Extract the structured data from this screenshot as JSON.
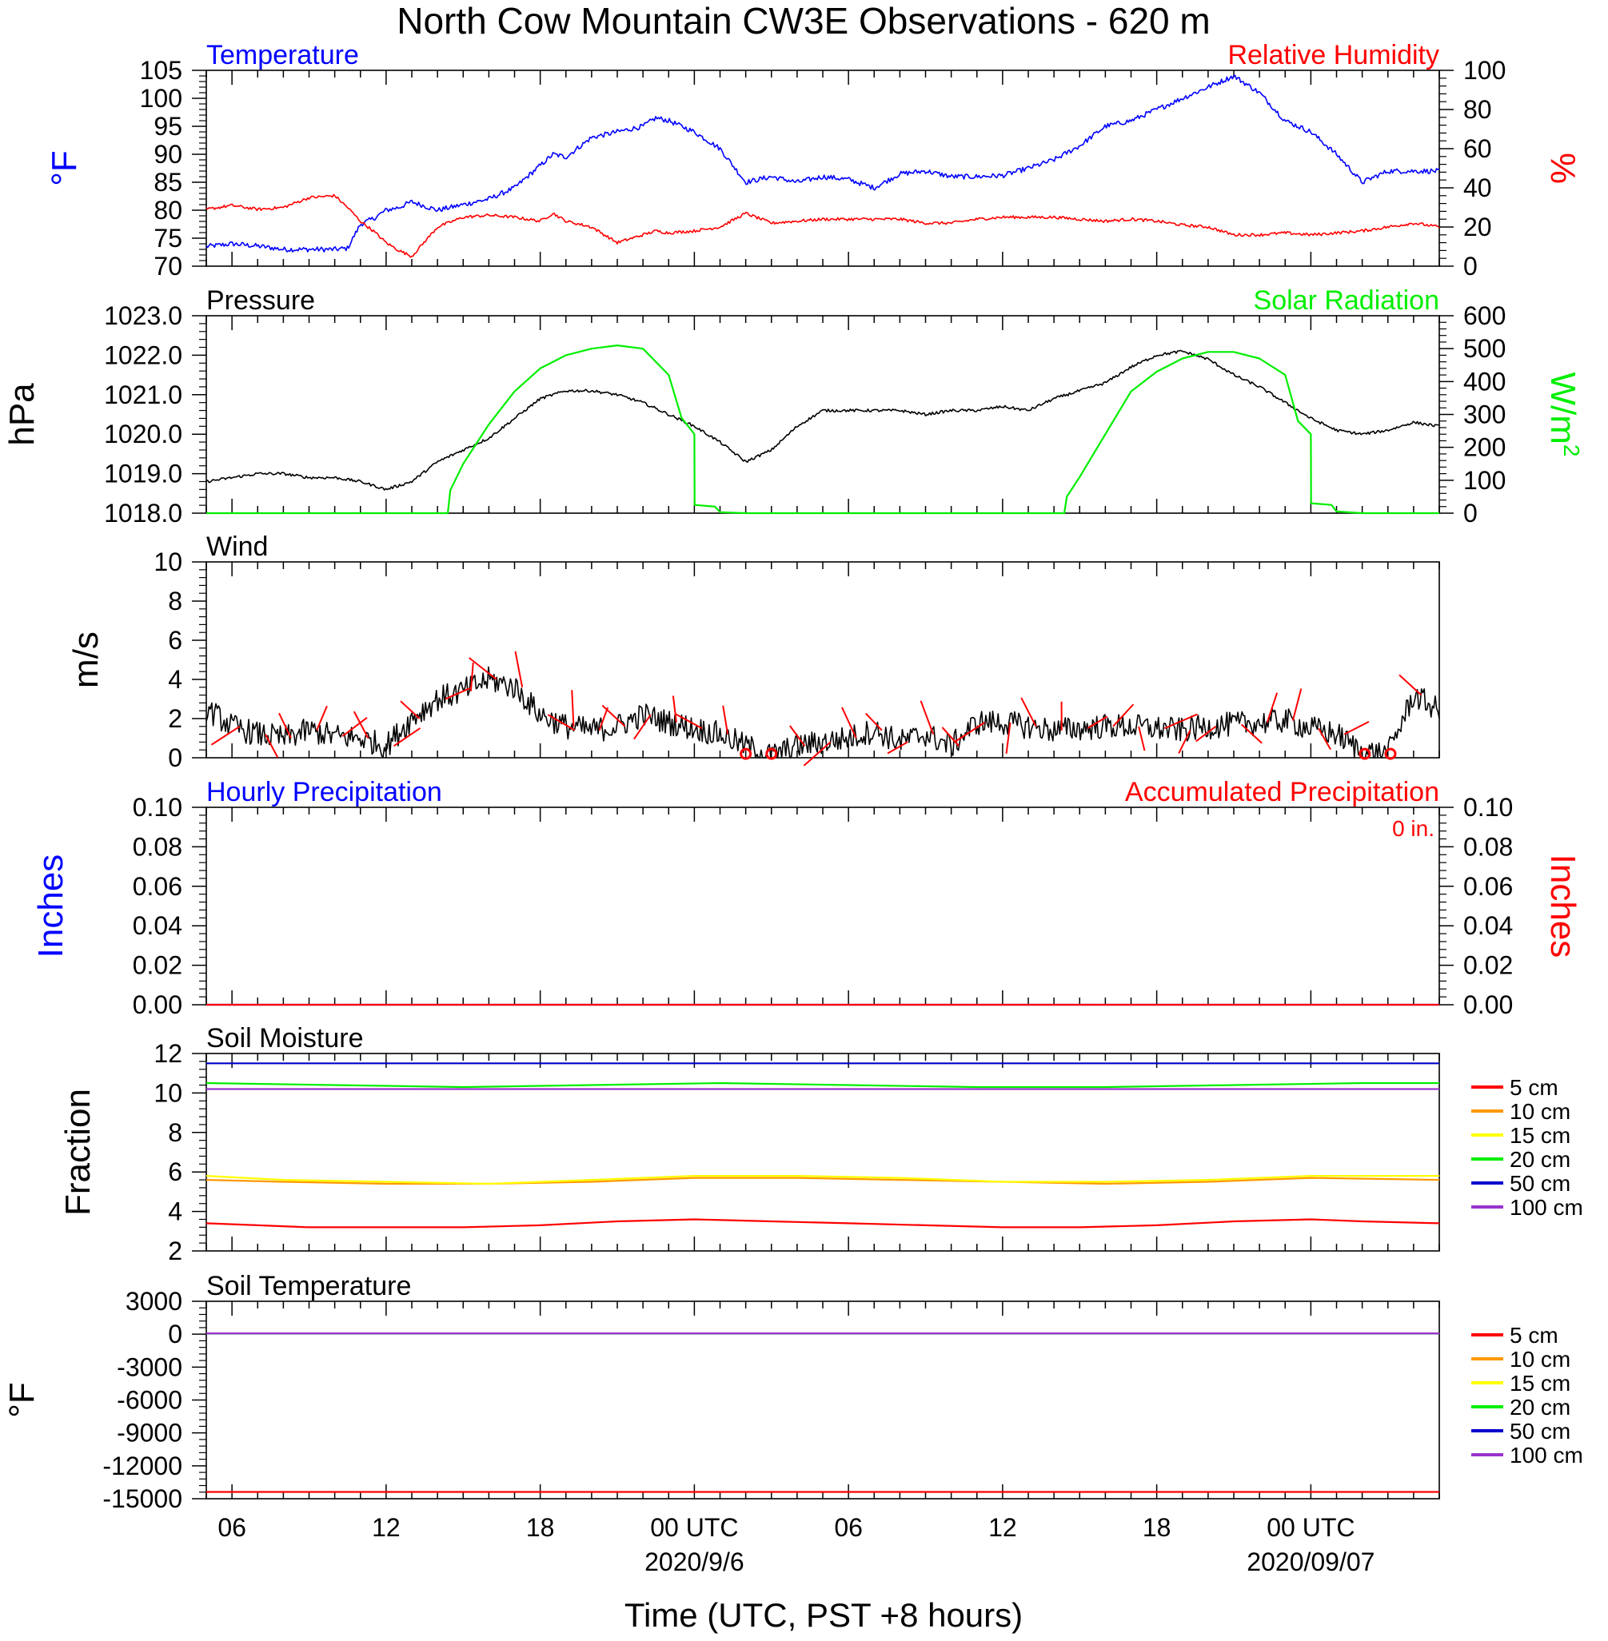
{
  "page": {
    "title": "North Cow Mountain CW3E Observations - 620 m",
    "xaxis": {
      "title": "Time (UTC, PST +8 hours)",
      "tick_labels": [
        "06",
        "12",
        "18",
        "00 UTC",
        "06",
        "12",
        "18",
        "00 UTC"
      ],
      "tick_hours": [
        6,
        12,
        18,
        24,
        30,
        36,
        42,
        48
      ],
      "date_labels": [
        {
          "text": "2020/9/6",
          "hour": 24
        },
        {
          "text": "2020/09/07",
          "hour": 48
        }
      ],
      "range_hours": [
        5,
        53
      ]
    },
    "colors": {
      "blue": "#0000ff",
      "red": "#ff0000",
      "green": "#00ee00",
      "black": "#000000",
      "orange": "#ff9900",
      "yellow": "#ffff00",
      "navy": "#0000cc",
      "purple": "#9933cc"
    }
  },
  "chart_data": [
    {
      "id": "temp-rh",
      "type": "line",
      "left_title": "Temperature",
      "right_title": "Relative Humidity",
      "ylabel_left": "°F",
      "ylabel_right": "%",
      "ylim_left": [
        70,
        105
      ],
      "ylim_right": [
        0,
        100
      ],
      "yticks_left": [
        70,
        75,
        80,
        85,
        90,
        95,
        100,
        105
      ],
      "yticks_right": [
        0,
        20,
        40,
        60,
        80,
        100
      ],
      "series": [
        {
          "name": "Temperature",
          "axis": "left",
          "color": "#0000ff",
          "x": [
            5,
            6,
            7,
            8,
            9,
            10,
            10.5,
            11,
            11.5,
            12,
            12.5,
            13,
            14,
            15,
            16,
            17,
            18,
            18.5,
            19,
            20,
            21,
            22,
            22.5,
            23,
            24,
            25,
            26,
            27,
            28,
            29,
            30,
            31,
            32,
            33,
            34,
            35,
            36,
            37,
            38,
            39,
            40,
            41,
            42,
            43,
            44,
            45,
            46,
            47,
            48,
            49,
            50,
            51,
            52,
            53
          ],
          "values": [
            73.5,
            74,
            73.6,
            73,
            73,
            73,
            73.2,
            77.5,
            78.5,
            80,
            80.5,
            81.5,
            80,
            81,
            82,
            84,
            88,
            90,
            89.5,
            93,
            94,
            95,
            96.5,
            96,
            94,
            91,
            85,
            86,
            85,
            86,
            85.5,
            84,
            86.5,
            87,
            86,
            86,
            86.2,
            87.5,
            89,
            91.5,
            95,
            96,
            98,
            100,
            102,
            104,
            101,
            96,
            94,
            90,
            85,
            87,
            87,
            87
          ]
        },
        {
          "name": "Relative Humidity",
          "axis": "right",
          "color": "#ff0000",
          "x": [
            5,
            6,
            7,
            8,
            9,
            10,
            10.5,
            11,
            11.5,
            12,
            12.5,
            13,
            14,
            15,
            16,
            17,
            18,
            18.5,
            19,
            20,
            21,
            22,
            22.5,
            23,
            24,
            25,
            26,
            27,
            28,
            29,
            30,
            31,
            32,
            33,
            34,
            35,
            36,
            37,
            38,
            39,
            40,
            41,
            42,
            43,
            44,
            45,
            46,
            47,
            48,
            49,
            50,
            51,
            52,
            53
          ],
          "values": [
            29,
            31,
            29,
            30,
            35,
            36,
            30,
            23,
            18,
            12,
            8,
            5,
            20,
            25,
            26,
            25,
            23,
            27,
            23,
            20,
            12,
            16,
            18,
            17,
            18,
            20,
            27,
            22,
            23,
            24,
            24,
            24,
            24,
            22,
            22,
            24,
            25,
            25,
            25,
            24,
            23,
            24,
            23,
            21,
            20,
            16,
            16,
            17,
            16,
            17,
            18,
            20,
            22,
            20
          ]
        }
      ]
    },
    {
      "id": "pressure-solar",
      "type": "line",
      "left_title": "Pressure",
      "right_title": "Solar Radiation",
      "ylabel_left": "hPa",
      "ylabel_right": "W/m",
      "ylabel_right_sup": "2",
      "ylim_left": [
        1018.0,
        1023.0
      ],
      "ylim_right": [
        0,
        600
      ],
      "yticks_left": [
        "1018.0",
        "1019.0",
        "1020.0",
        "1021.0",
        "1022.0",
        "1023.0"
      ],
      "yticks_right": [
        0,
        100,
        200,
        300,
        400,
        500,
        600
      ],
      "series": [
        {
          "name": "Pressure",
          "axis": "left",
          "color": "#000000",
          "x": [
            5,
            6,
            7,
            8,
            9,
            10,
            11,
            12,
            13,
            14,
            15,
            16,
            17,
            18,
            19,
            20,
            21,
            22,
            23,
            24,
            25,
            26,
            27,
            28,
            29,
            30,
            31,
            32,
            33,
            34,
            35,
            36,
            37,
            38,
            39,
            40,
            41,
            42,
            43,
            44,
            45,
            46,
            47,
            48,
            49,
            50,
            51,
            52,
            53
          ],
          "values": [
            1018.8,
            1018.9,
            1019.0,
            1019.0,
            1018.9,
            1018.9,
            1018.8,
            1018.6,
            1018.8,
            1019.3,
            1019.6,
            1019.9,
            1020.4,
            1020.9,
            1021.1,
            1021.1,
            1021.0,
            1020.8,
            1020.5,
            1020.2,
            1019.8,
            1019.3,
            1019.6,
            1020.2,
            1020.6,
            1020.6,
            1020.6,
            1020.6,
            1020.5,
            1020.6,
            1020.6,
            1020.7,
            1020.6,
            1020.9,
            1021.1,
            1021.3,
            1021.7,
            1022.0,
            1022.1,
            1021.9,
            1021.5,
            1021.2,
            1020.8,
            1020.4,
            1020.1,
            1020.0,
            1020.1,
            1020.3,
            1020.2
          ]
        },
        {
          "name": "Solar Radiation",
          "axis": "right",
          "color": "#00ee00",
          "x": [
            5,
            14.4,
            14.5,
            15,
            16,
            17,
            18,
            19,
            20,
            21,
            22,
            23,
            23.5,
            24,
            24.01,
            24.8,
            25,
            26,
            30,
            38.4,
            38.5,
            39,
            40,
            41,
            42,
            43,
            44,
            45,
            46,
            47,
            47.5,
            48,
            48.01,
            48.8,
            49,
            50,
            53
          ],
          "values": [
            0,
            0,
            70,
            150,
            270,
            370,
            440,
            480,
            500,
            510,
            500,
            420,
            290,
            240,
            25,
            20,
            3,
            0,
            0,
            0,
            50,
            110,
            240,
            370,
            430,
            470,
            490,
            490,
            470,
            420,
            280,
            240,
            30,
            25,
            5,
            0,
            0
          ]
        }
      ]
    },
    {
      "id": "wind",
      "type": "line",
      "left_title": "Wind",
      "ylabel_left": "m/s",
      "ylim_left": [
        0,
        10
      ],
      "yticks_left": [
        0,
        2,
        4,
        6,
        8,
        10
      ],
      "series": [
        {
          "name": "Wind",
          "axis": "left",
          "color": "#000000",
          "x": [
            5,
            6,
            7,
            8,
            9,
            10,
            11,
            12,
            13,
            14,
            15,
            16,
            17,
            18,
            19,
            20,
            21,
            22,
            23,
            24,
            25,
            26,
            27,
            28,
            29,
            30,
            31,
            32,
            33,
            34,
            35,
            36,
            37,
            38,
            39,
            40,
            41,
            42,
            43,
            44,
            45,
            46,
            47,
            48,
            49,
            50,
            51,
            52,
            53
          ],
          "values": [
            2.5,
            1.6,
            1.2,
            1.0,
            1.4,
            1.1,
            1.0,
            0.6,
            2.0,
            3.0,
            3.4,
            4.0,
            3.6,
            2.2,
            1.6,
            1.4,
            1.6,
            2.2,
            1.8,
            1.5,
            1.2,
            0.6,
            0.1,
            0.6,
            0.8,
            1.0,
            1.4,
            0.8,
            1.2,
            0.6,
            1.8,
            1.8,
            1.6,
            1.4,
            1.5,
            1.6,
            1.6,
            1.5,
            1.4,
            1.6,
            1.7,
            1.8,
            1.9,
            1.5,
            1.2,
            0.3,
            0.2,
            3.2,
            2.4
          ]
        }
      ],
      "calm_markers_hours": [
        26.0,
        27.0,
        50.1,
        51.1
      ]
    },
    {
      "id": "precip",
      "type": "line",
      "left_title": "Hourly Precipitation",
      "right_title": "Accumulated Precipitation",
      "annotation": "0 in.",
      "ylabel_left": "Inches",
      "ylabel_right": "Inches",
      "ylim_left": [
        0,
        0.1
      ],
      "ylim_right": [
        0,
        0.1
      ],
      "yticks_left": [
        "0.00",
        "0.02",
        "0.04",
        "0.06",
        "0.08",
        "0.10"
      ],
      "yticks_right": [
        "0.00",
        "0.02",
        "0.04",
        "0.06",
        "0.08",
        "0.10"
      ],
      "series": [
        {
          "name": "Hourly Precipitation",
          "axis": "left",
          "color": "#0000ff",
          "x": [
            5,
            53
          ],
          "values": [
            0,
            0
          ]
        },
        {
          "name": "Accumulated Precipitation",
          "axis": "right",
          "color": "#ff0000",
          "x": [
            5,
            53
          ],
          "values": [
            0,
            0
          ]
        }
      ]
    },
    {
      "id": "soil-moisture",
      "type": "line",
      "left_title": "Soil Moisture",
      "ylabel_left": "Fraction",
      "ylim_left": [
        2,
        12
      ],
      "yticks_left": [
        2,
        4,
        6,
        8,
        10,
        12
      ],
      "legend": [
        {
          "label": "5 cm",
          "color": "#ff0000"
        },
        {
          "label": "10 cm",
          "color": "#ff9900"
        },
        {
          "label": "15 cm",
          "color": "#ffff00"
        },
        {
          "label": "20 cm",
          "color": "#00ee00"
        },
        {
          "label": "50 cm",
          "color": "#0000cc"
        },
        {
          "label": "100 cm",
          "color": "#9933cc"
        }
      ],
      "series": [
        {
          "name": "5 cm",
          "axis": "left",
          "color": "#ff0000",
          "x": [
            5,
            7,
            9,
            12,
            15,
            18,
            21,
            24,
            27,
            30,
            33,
            36,
            39,
            42,
            45,
            48,
            50,
            53
          ],
          "values": [
            3.4,
            3.3,
            3.2,
            3.2,
            3.2,
            3.3,
            3.5,
            3.6,
            3.5,
            3.4,
            3.3,
            3.2,
            3.2,
            3.3,
            3.5,
            3.6,
            3.5,
            3.4
          ]
        },
        {
          "name": "10 cm",
          "axis": "left",
          "color": "#ff9900",
          "x": [
            5,
            8,
            12,
            16,
            20,
            24,
            28,
            32,
            36,
            40,
            44,
            48,
            53
          ],
          "values": [
            5.6,
            5.5,
            5.4,
            5.4,
            5.5,
            5.7,
            5.7,
            5.6,
            5.5,
            5.4,
            5.5,
            5.7,
            5.6
          ]
        },
        {
          "name": "15 cm",
          "axis": "left",
          "color": "#ffff00",
          "x": [
            5,
            8,
            12,
            16,
            20,
            24,
            28,
            32,
            36,
            40,
            44,
            48,
            53
          ],
          "values": [
            5.8,
            5.6,
            5.5,
            5.4,
            5.6,
            5.8,
            5.8,
            5.7,
            5.5,
            5.5,
            5.6,
            5.8,
            5.8
          ]
        },
        {
          "name": "20 cm",
          "axis": "left",
          "color": "#00ee00",
          "x": [
            5,
            10,
            15,
            20,
            25,
            30,
            35,
            40,
            45,
            50,
            53
          ],
          "values": [
            10.5,
            10.4,
            10.3,
            10.4,
            10.5,
            10.4,
            10.3,
            10.3,
            10.4,
            10.5,
            10.5
          ]
        },
        {
          "name": "50 cm",
          "axis": "left",
          "color": "#0000cc",
          "x": [
            5,
            15,
            25,
            35,
            45,
            53
          ],
          "values": [
            11.5,
            11.5,
            11.5,
            11.5,
            11.5,
            11.5
          ]
        },
        {
          "name": "100 cm",
          "axis": "left",
          "color": "#9933cc",
          "x": [
            5,
            15,
            25,
            35,
            45,
            53
          ],
          "values": [
            10.2,
            10.2,
            10.2,
            10.2,
            10.2,
            10.2
          ]
        }
      ]
    },
    {
      "id": "soil-temp",
      "type": "line",
      "left_title": "Soil Temperature",
      "ylabel_left": "°F",
      "ylim_left": [
        -15000,
        3000
      ],
      "yticks_left": [
        -15000,
        -12000,
        -9000,
        -6000,
        -3000,
        0,
        3000
      ],
      "legend": [
        {
          "label": "5 cm",
          "color": "#ff0000"
        },
        {
          "label": "10 cm",
          "color": "#ff9900"
        },
        {
          "label": "15 cm",
          "color": "#ffff00"
        },
        {
          "label": "20 cm",
          "color": "#00ee00"
        },
        {
          "label": "50 cm",
          "color": "#0000cc"
        },
        {
          "label": "100 cm",
          "color": "#9933cc"
        }
      ],
      "series": [
        {
          "name": "5 cm",
          "axis": "left",
          "color": "#ff0000",
          "x": [
            5,
            53
          ],
          "values": [
            -14380,
            -14380
          ]
        },
        {
          "name": "10 cm",
          "axis": "left",
          "color": "#ff9900",
          "x": [
            5,
            53
          ],
          "values": [
            80,
            80
          ]
        },
        {
          "name": "15 cm",
          "axis": "left",
          "color": "#ffff00",
          "x": [
            5,
            53
          ],
          "values": [
            80,
            80
          ]
        },
        {
          "name": "20 cm",
          "axis": "left",
          "color": "#00ee00",
          "x": [
            5,
            53
          ],
          "values": [
            80,
            80
          ]
        },
        {
          "name": "50 cm",
          "axis": "left",
          "color": "#0000cc",
          "x": [
            5,
            53
          ],
          "values": [
            80,
            80
          ]
        },
        {
          "name": "100 cm",
          "axis": "left",
          "color": "#9933cc",
          "x": [
            5,
            53
          ],
          "values": [
            80,
            80
          ]
        }
      ]
    }
  ]
}
